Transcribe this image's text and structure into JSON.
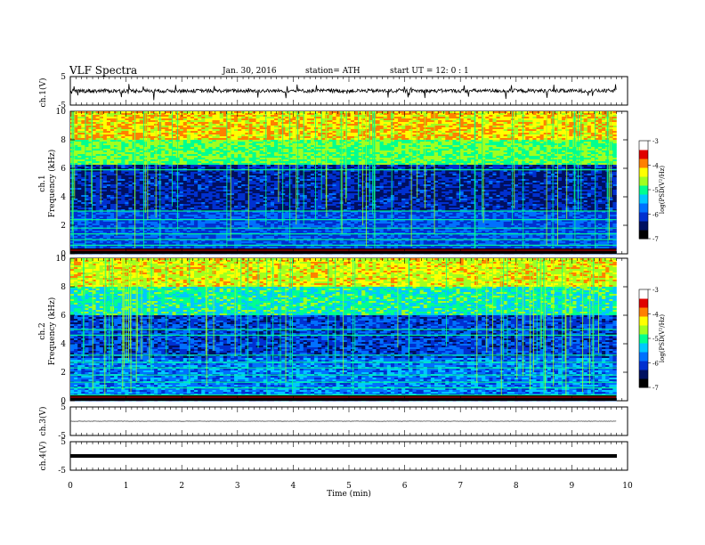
{
  "header": {
    "title": "VLF  Spectra",
    "date": "Jan. 30, 2016",
    "station": "station= ATH",
    "start": "start  UT  =    12: 0   : 1"
  },
  "colors": {
    "colormap": [
      "#000000",
      "#001060",
      "#0030d0",
      "#0070ff",
      "#00c8ff",
      "#00ff90",
      "#a0ff20",
      "#ffff00",
      "#ff8000",
      "#e00000",
      "#ffffff"
    ]
  },
  "chart_data": [
    {
      "type": "line",
      "panel": "ch1-waveform",
      "ylabel": "ch.1(V)",
      "ylim": [
        -5,
        5
      ],
      "yticks": [
        "5",
        "-5"
      ],
      "baseline": 0,
      "amplitude_range": [
        -0.8,
        0.5
      ]
    },
    {
      "type": "heatmap",
      "panel": "ch1-spectrogram",
      "ylabel_top": "ch.1",
      "ylabel": "Frequency  (kHz)",
      "ylim": [
        0,
        10
      ],
      "yticks": [
        "10",
        "8",
        "6",
        "4",
        "2",
        "0"
      ],
      "xlim": [
        0,
        9.8
      ],
      "colorbar": {
        "label": "log(PSD(V²/Hz)",
        "range": [
          -7,
          -3
        ],
        "ticks": [
          "-3",
          "-4",
          "-5",
          "-6",
          "-7"
        ]
      }
    },
    {
      "type": "heatmap",
      "panel": "ch2-spectrogram",
      "ylabel_top": "ch.2",
      "ylabel": "Frequency  (kHz)",
      "ylim": [
        0,
        10
      ],
      "yticks": [
        "10",
        "8",
        "6",
        "4",
        "2",
        "0"
      ],
      "xlim": [
        0,
        9.8
      ],
      "colorbar": {
        "label": "log(PSD(V²/Hz)",
        "range": [
          -7,
          -3
        ],
        "ticks": [
          "-3",
          "-4",
          "-5",
          "-6",
          "-7"
        ]
      }
    },
    {
      "type": "line",
      "panel": "ch3-waveform",
      "ylabel": "ch.3(V)",
      "ylim": [
        -5,
        5
      ],
      "yticks": [
        "5",
        "-5"
      ],
      "baseline": 0
    },
    {
      "type": "line",
      "panel": "ch4-waveform",
      "ylabel": "ch.4(V)",
      "ylim": [
        -5,
        5
      ],
      "yticks": [
        "5",
        "-5"
      ],
      "baseline": 0
    }
  ],
  "xaxis": {
    "label": "Time  (min)",
    "range": [
      0,
      10
    ],
    "ticks": [
      "0",
      "1",
      "2",
      "3",
      "4",
      "5",
      "6",
      "7",
      "8",
      "9",
      "10"
    ]
  }
}
